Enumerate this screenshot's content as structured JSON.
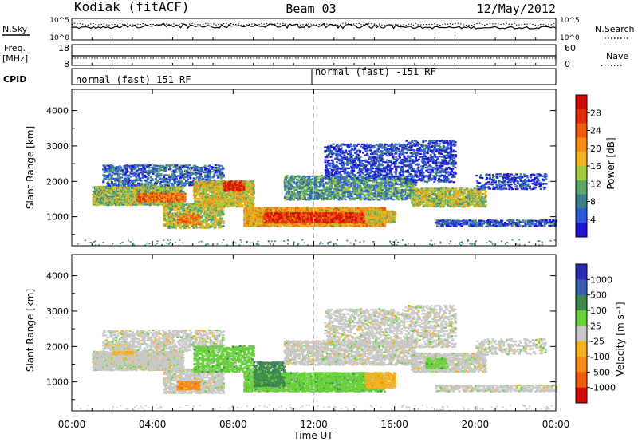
{
  "header": {
    "station": "Kodiak (fitACF)",
    "beam": "Beam 03",
    "date": "12/May/2012"
  },
  "params": {
    "nsky_label": "N.Sky",
    "nsearch_label": "N.Search",
    "freq_label": "Freq.",
    "freq_unit": "[MHz]",
    "nave_label": "Nave",
    "cpid_label": "CPID",
    "noise_left_ticks": [
      "10^5",
      "10^0"
    ],
    "noise_right_ticks": [
      "10^5",
      "10^0"
    ],
    "freq_ticks": [
      "18",
      "8"
    ],
    "nave_ticks": [
      "60",
      "0"
    ]
  },
  "cpid": {
    "segments": [
      "normal (fast) 151 RF",
      "normal (fast) -151 RF"
    ],
    "switch_time": "12:00"
  },
  "chart_data": [
    {
      "type": "heatmap",
      "panel": "power",
      "ylabel": "Slant Range [km]",
      "ylim": [
        180,
        4600
      ],
      "y_ticks": [
        1000,
        2000,
        3000,
        4000
      ],
      "xlim_hours": [
        0,
        24
      ],
      "colorbar": {
        "label": "Power [dB]",
        "range": [
          0,
          32
        ],
        "ticks": [
          "4",
          "8",
          "12",
          "16",
          "20",
          "24",
          "28"
        ],
        "colors": [
          "#1e14d2",
          "#2e5ad8",
          "#3a7f8c",
          "#5ba76a",
          "#a5cc3c",
          "#f4b21c",
          "#f58a16",
          "#ee5b0f",
          "#e22d0a",
          "#d20a0a"
        ]
      },
      "bands": [
        {
          "t0": 1.0,
          "t1": 5.5,
          "r0": 1350,
          "r1": 1900,
          "intensity": 0.42,
          "density": 0.85
        },
        {
          "t0": 3.2,
          "t1": 5.6,
          "r0": 1450,
          "r1": 1700,
          "intensity": 0.72,
          "density": 0.8
        },
        {
          "t0": 1.5,
          "t1": 7.5,
          "r0": 1900,
          "r1": 2500,
          "intensity": 0.2,
          "density": 0.4
        },
        {
          "t0": 4.5,
          "t1": 7.5,
          "r0": 700,
          "r1": 1400,
          "intensity": 0.45,
          "density": 0.55
        },
        {
          "t0": 5.2,
          "t1": 6.3,
          "r0": 800,
          "r1": 1100,
          "intensity": 0.65,
          "density": 0.7
        },
        {
          "t0": 6.0,
          "t1": 9.0,
          "r0": 1300,
          "r1": 2050,
          "intensity": 0.5,
          "density": 0.65
        },
        {
          "t0": 7.5,
          "t1": 8.5,
          "r0": 1750,
          "r1": 2050,
          "intensity": 0.85,
          "density": 0.7
        },
        {
          "t0": 8.5,
          "t1": 15.5,
          "r0": 750,
          "r1": 1300,
          "intensity": 0.6,
          "density": 0.85
        },
        {
          "t0": 9.5,
          "t1": 14.5,
          "r0": 850,
          "r1": 1150,
          "intensity": 0.85,
          "density": 0.85
        },
        {
          "t0": 10.5,
          "t1": 17.0,
          "r0": 1500,
          "r1": 2200,
          "intensity": 0.3,
          "density": 0.5
        },
        {
          "t0": 12.5,
          "t1": 16.5,
          "r0": 2100,
          "r1": 3100,
          "intensity": 0.12,
          "density": 0.35
        },
        {
          "t0": 14.5,
          "t1": 16.0,
          "r0": 850,
          "r1": 1200,
          "intensity": 0.5,
          "density": 0.7
        },
        {
          "t0": 16.8,
          "t1": 20.5,
          "r0": 1300,
          "r1": 1850,
          "intensity": 0.45,
          "density": 0.65
        },
        {
          "t0": 16.5,
          "t1": 19.0,
          "r0": 2000,
          "r1": 3200,
          "intensity": 0.12,
          "density": 0.35
        },
        {
          "t0": 18.0,
          "t1": 24.0,
          "r0": 750,
          "r1": 950,
          "intensity": 0.15,
          "density": 0.55
        },
        {
          "t0": 20.0,
          "t1": 23.5,
          "r0": 1800,
          "r1": 2250,
          "intensity": 0.12,
          "density": 0.3
        }
      ]
    },
    {
      "type": "heatmap",
      "panel": "velocity",
      "ylabel": "Slant Range [km]",
      "ylim": [
        180,
        4600
      ],
      "y_ticks": [
        1000,
        2000,
        3000,
        4000
      ],
      "xlim_hours": [
        0,
        24
      ],
      "x_ticks": [
        "00:00",
        "04:00",
        "08:00",
        "12:00",
        "16:00",
        "20:00",
        "00:00"
      ],
      "xlabel": "Time UT",
      "colorbar": {
        "label": "Velocity [m s⁻¹]",
        "ticks": [
          "1000",
          "500",
          "100",
          "25",
          "-25",
          "-100",
          "-500",
          "-1000"
        ],
        "colors": [
          "#2b2bb4",
          "#3a5fae",
          "#3e8a4c",
          "#68d13a",
          "#c8c8c8",
          "#f4b21c",
          "#f58a16",
          "#ee5b0f",
          "#d20a0a"
        ]
      },
      "bands": [
        {
          "t0": 1.0,
          "t1": 5.5,
          "r0": 1350,
          "r1": 1900,
          "class": 4,
          "density": 0.85
        },
        {
          "t0": 2.0,
          "t1": 3.0,
          "r0": 1800,
          "r1": 2100,
          "class": 5,
          "density": 0.6
        },
        {
          "t0": 1.5,
          "t1": 7.5,
          "r0": 1900,
          "r1": 2500,
          "class": 4,
          "density": 0.4
        },
        {
          "t0": 4.5,
          "t1": 7.5,
          "r0": 700,
          "r1": 1400,
          "class": 4,
          "density": 0.55
        },
        {
          "t0": 5.2,
          "t1": 6.3,
          "r0": 800,
          "r1": 1050,
          "class": 6,
          "density": 0.7
        },
        {
          "t0": 6.0,
          "t1": 9.0,
          "r0": 1300,
          "r1": 2050,
          "class": 3,
          "density": 0.55
        },
        {
          "t0": 8.5,
          "t1": 15.5,
          "r0": 750,
          "r1": 1300,
          "class": 3,
          "density": 0.85
        },
        {
          "t0": 9.0,
          "t1": 10.5,
          "r0": 900,
          "r1": 1600,
          "class": 2,
          "density": 0.6
        },
        {
          "t0": 10.5,
          "t1": 17.0,
          "r0": 1500,
          "r1": 2200,
          "class": 4,
          "density": 0.5
        },
        {
          "t0": 12.5,
          "t1": 16.5,
          "r0": 2100,
          "r1": 3100,
          "class": 4,
          "density": 0.35
        },
        {
          "t0": 14.5,
          "t1": 16.0,
          "r0": 850,
          "r1": 1300,
          "class": 5,
          "density": 0.75
        },
        {
          "t0": 16.8,
          "t1": 20.5,
          "r0": 1300,
          "r1": 1850,
          "class": 4,
          "density": 0.65
        },
        {
          "t0": 17.5,
          "t1": 18.5,
          "r0": 1400,
          "r1": 1700,
          "class": 3,
          "density": 0.5
        },
        {
          "t0": 16.5,
          "t1": 19.0,
          "r0": 2000,
          "r1": 3200,
          "class": 4,
          "density": 0.35
        },
        {
          "t0": 18.0,
          "t1": 24.0,
          "r0": 750,
          "r1": 950,
          "class": 4,
          "density": 0.55
        },
        {
          "t0": 20.0,
          "t1": 23.5,
          "r0": 1800,
          "r1": 2250,
          "class": 4,
          "density": 0.3
        }
      ]
    }
  ]
}
